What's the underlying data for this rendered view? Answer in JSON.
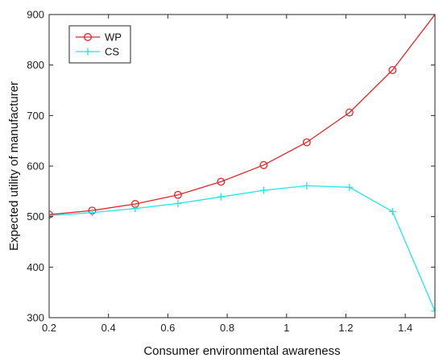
{
  "chart_data": {
    "type": "line",
    "xlabel": "Consumer environmental awareness",
    "ylabel": "Expected utility of manufacturer",
    "xlim": [
      0.2,
      1.5
    ],
    "ylim": [
      300,
      900
    ],
    "xticks": [
      0.2,
      0.4,
      0.6,
      0.8,
      1.0,
      1.2,
      1.4
    ],
    "xtick_labels": [
      "0.2",
      "0.4",
      "0.6",
      "0.8",
      "1",
      "1.2",
      "1.4"
    ],
    "yticks": [
      300,
      400,
      500,
      600,
      700,
      800,
      900
    ],
    "ytick_labels": [
      "300",
      "400",
      "500",
      "600",
      "700",
      "800",
      "900"
    ],
    "grid": false,
    "legend_position": "top-left",
    "series": [
      {
        "name": "WP",
        "color": "#e8232a",
        "marker": "circle",
        "x": [
          0.2,
          0.345,
          0.49,
          0.634,
          0.779,
          0.923,
          1.068,
          1.212,
          1.357,
          1.5
        ],
        "y": [
          504,
          512,
          525,
          543,
          569,
          602,
          647,
          706,
          790,
          900
        ],
        "marker_indices": [
          0,
          1,
          2,
          3,
          4,
          5,
          6,
          7,
          8
        ]
      },
      {
        "name": "CS",
        "color": "#22e6e6",
        "marker": "plus",
        "x": [
          0.2,
          0.345,
          0.49,
          0.634,
          0.779,
          0.923,
          1.068,
          1.212,
          1.357,
          1.5
        ],
        "y": [
          502,
          508,
          516,
          526,
          539,
          552,
          561,
          558,
          510,
          313
        ],
        "marker_indices": [
          0,
          1,
          2,
          3,
          4,
          5,
          6,
          7,
          8,
          9
        ]
      }
    ]
  }
}
